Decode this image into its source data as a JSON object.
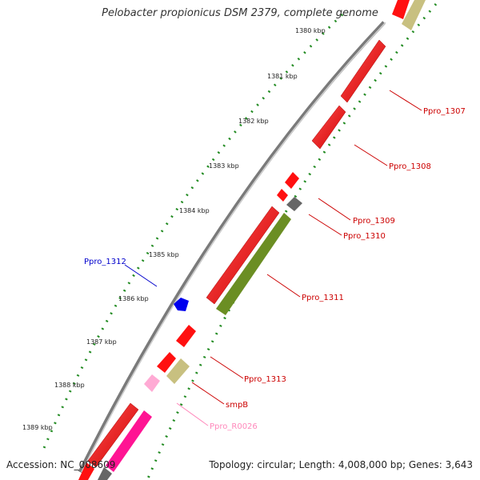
{
  "title": "Pelobacter propionicus DSM 2379, complete genome",
  "accession_label": "Accession: NC_008609",
  "topology_label": "Topology: circular; Length: 4,008,000 bp; Genes: 3,643",
  "ticks": [
    "1380 kbp",
    "1381 kbp",
    "1382 kbp",
    "1383 kbp",
    "1384 kbp",
    "1385 kbp",
    "1386 kbp",
    "1387 kbp",
    "1388 kbp",
    "1389 kbp"
  ],
  "gene_labels": [
    {
      "name": "Ppro_1307",
      "color": "#cc0000"
    },
    {
      "name": "Ppro_1308",
      "color": "#cc0000"
    },
    {
      "name": "Ppro_1309",
      "color": "#cc0000"
    },
    {
      "name": "Ppro_1310",
      "color": "#cc0000"
    },
    {
      "name": "Ppro_1311",
      "color": "#cc0000"
    },
    {
      "name": "Ppro_1312",
      "color": "#0000cc"
    },
    {
      "name": "Ppro_1313",
      "color": "#cc0000"
    },
    {
      "name": "smpB",
      "color": "#cc0000"
    },
    {
      "name": "Ppro_R0026",
      "color": "#ff88bb"
    }
  ],
  "colors": {
    "gene_red": "#ff1010",
    "gene_olive": "#6b8e23",
    "gene_tan": "#c8c080",
    "gene_gray": "#666666",
    "gene_blue": "#0000ee",
    "gene_magenta": "#ff1493",
    "gene_pink": "#ffaad4",
    "backbone": "#888888",
    "tick_green": "#228b22"
  }
}
